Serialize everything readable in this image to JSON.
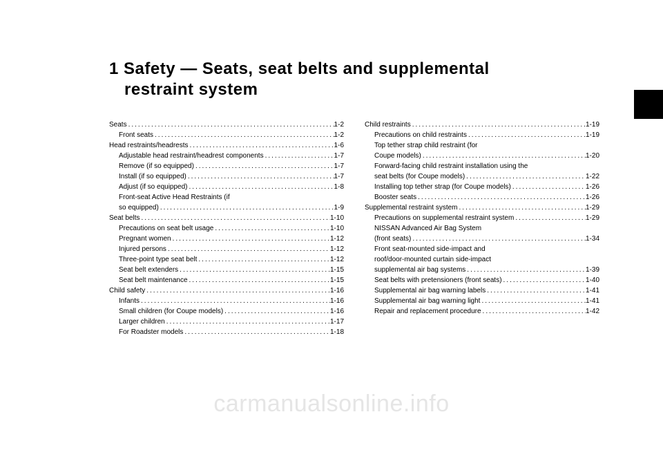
{
  "chapter_title_line1": "1 Safety — Seats, seat belts and supplemental",
  "chapter_title_line2": "restraint system",
  "watermark": "carmanualsonline.info",
  "left_column": [
    {
      "label": "Seats",
      "page": "1-2",
      "indent": false
    },
    {
      "label": "Front seats",
      "page": "1-2",
      "indent": true
    },
    {
      "label": "Head restraints/headrests",
      "page": "1-6",
      "indent": false
    },
    {
      "label": "Adjustable head restraint/headrest components",
      "page": "1-7",
      "indent": true
    },
    {
      "label": "Remove (if so equipped)",
      "page": "1-7",
      "indent": true
    },
    {
      "label": "Install (if so equipped)",
      "page": "1-7",
      "indent": true
    },
    {
      "label": "Adjust (if so equipped)",
      "page": "1-8",
      "indent": true
    },
    {
      "label": "Front-seat Active Head Restraints (if",
      "page": "",
      "indent": true,
      "nowrap": true
    },
    {
      "label": "so equipped)",
      "page": "1-9",
      "indent": true
    },
    {
      "label": "Seat belts",
      "page": "1-10",
      "indent": false
    },
    {
      "label": "Precautions on seat belt usage",
      "page": "1-10",
      "indent": true
    },
    {
      "label": "Pregnant women",
      "page": "1-12",
      "indent": true
    },
    {
      "label": "Injured persons",
      "page": "1-12",
      "indent": true
    },
    {
      "label": "Three-point type seat belt",
      "page": "1-12",
      "indent": true
    },
    {
      "label": "Seat belt extenders",
      "page": "1-15",
      "indent": true
    },
    {
      "label": "Seat belt maintenance",
      "page": "1-15",
      "indent": true
    },
    {
      "label": "Child safety",
      "page": "1-16",
      "indent": false
    },
    {
      "label": "Infants",
      "page": "1-16",
      "indent": true
    },
    {
      "label": "Small children (for Coupe models)",
      "page": "1-16",
      "indent": true
    },
    {
      "label": "Larger children",
      "page": "1-17",
      "indent": true
    },
    {
      "label": "For Roadster models",
      "page": "1-18",
      "indent": true
    }
  ],
  "right_column": [
    {
      "label": "Child restraints",
      "page": "1-19",
      "indent": false
    },
    {
      "label": "Precautions on child restraints",
      "page": "1-19",
      "indent": true
    },
    {
      "label": "Top tether strap child restraint (for",
      "page": "",
      "indent": true,
      "nowrap": true
    },
    {
      "label": "Coupe models)",
      "page": "1-20",
      "indent": true
    },
    {
      "label": "Forward-facing child restraint installation using the",
      "page": "",
      "indent": true,
      "nowrap": true
    },
    {
      "label": "seat belts (for Coupe models)",
      "page": "1-22",
      "indent": true
    },
    {
      "label": "Installing top tether strap (for Coupe models)",
      "page": "1-26",
      "indent": true
    },
    {
      "label": "Booster seats",
      "page": "1-26",
      "indent": true
    },
    {
      "label": "Supplemental restraint system",
      "page": "1-29",
      "indent": false
    },
    {
      "label": "Precautions on supplemental restraint system",
      "page": "1-29",
      "indent": true
    },
    {
      "label": "NISSAN Advanced Air Bag System",
      "page": "",
      "indent": true,
      "nowrap": true
    },
    {
      "label": "(front seats)",
      "page": "1-34",
      "indent": true
    },
    {
      "label": "Front seat-mounted side-impact and",
      "page": "",
      "indent": true,
      "nowrap": true
    },
    {
      "label": "roof/door-mounted curtain side-impact",
      "page": "",
      "indent": true,
      "nowrap": true
    },
    {
      "label": "supplemental air bag systems",
      "page": "1-39",
      "indent": true
    },
    {
      "label": "Seat belts with pretensioners (front seats)",
      "page": "1-40",
      "indent": true
    },
    {
      "label": "Supplemental air bag warning labels",
      "page": "1-41",
      "indent": true
    },
    {
      "label": "Supplemental air bag warning light",
      "page": "1-41",
      "indent": true
    },
    {
      "label": "Repair and replacement procedure",
      "page": "1-42",
      "indent": true
    }
  ]
}
